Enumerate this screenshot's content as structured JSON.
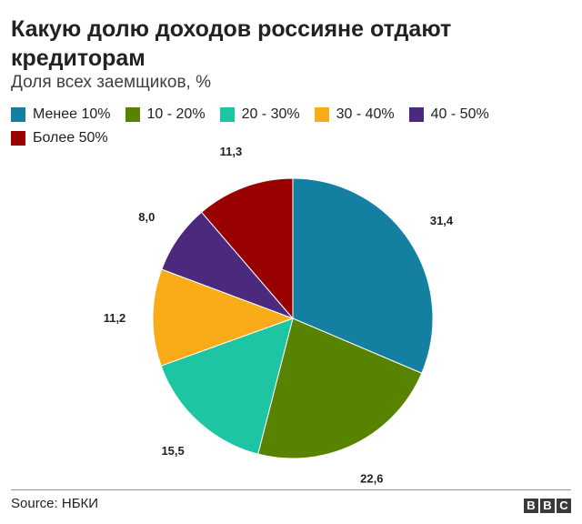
{
  "chart_data": {
    "type": "pie",
    "title": "Какую долю доходов россияне отдают кредиторам",
    "subtitle": "Доля всех заемщиков, %",
    "categories": [
      "Менее 10%",
      "10 - 20%",
      "20 - 30%",
      "30 - 40%",
      "40 - 50%",
      "Более 50%"
    ],
    "values": [
      31.4,
      22.6,
      15.5,
      11.2,
      8.0,
      11.3
    ],
    "value_labels": [
      "31,4",
      "22,6",
      "15,5",
      "11,2",
      "8,0",
      "11,3"
    ],
    "colors": [
      "#1380a1",
      "#588300",
      "#1dc5a2",
      "#faab18",
      "#4b2a7e",
      "#990000"
    ],
    "legend_position": "top",
    "start_angle": "12 o'clock, clockwise"
  },
  "footer": {
    "source": "Source: НБКИ",
    "logo_letters": [
      "B",
      "B",
      "C"
    ]
  }
}
